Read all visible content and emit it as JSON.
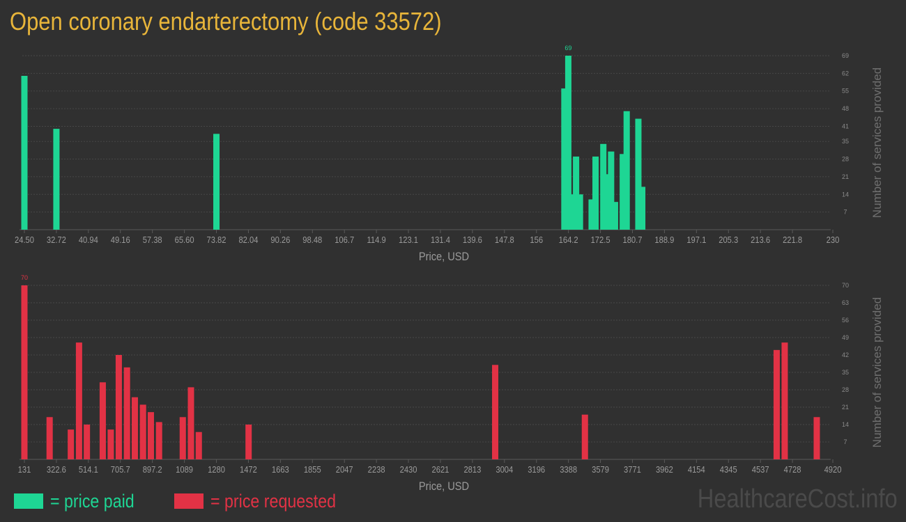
{
  "title": "Open coronary endarterectomy (code 33572)",
  "colors": {
    "paid": "#1ed694",
    "requested": "#e23245",
    "title": "#e8b53a",
    "background": "#303030"
  },
  "chart_data": [
    {
      "type": "bar",
      "name": "price paid",
      "xlabel": "Price, USD",
      "ylabel": "Number of services provided",
      "x_tick_labels": [
        "24.50",
        "32.72",
        "40.94",
        "49.16",
        "57.38",
        "65.60",
        "73.82",
        "82.04",
        "90.26",
        "98.48",
        "106.7",
        "114.9",
        "123.1",
        "131.4",
        "139.6",
        "147.8",
        "156",
        "164.2",
        "172.5",
        "180.7",
        "188.9",
        "197.1",
        "205.3",
        "213.6",
        "221.8",
        "230"
      ],
      "xlim": [
        24.5,
        230
      ],
      "y_ticks": [
        7,
        14,
        21,
        28,
        35,
        41,
        48,
        55,
        62,
        69
      ],
      "ylim": [
        0,
        69
      ],
      "grid": true,
      "y_axis_side": "right",
      "max_label": "69",
      "x": [
        24.5,
        32.72,
        73.82,
        163.2,
        164.2,
        165.2,
        166.2,
        167.2,
        170.2,
        171.2,
        173.2,
        174.2,
        175.2,
        176.2,
        178.2,
        179.2,
        182.2,
        183.2,
        189.2,
        200.2
      ],
      "values": [
        61,
        40,
        38,
        56,
        69,
        14,
        29,
        14,
        12,
        29,
        34,
        22,
        31,
        11,
        30,
        47,
        44,
        17,
        0,
        0
      ]
    },
    {
      "type": "bar",
      "name": "price requested",
      "xlabel": "Price, USD",
      "ylabel": "Number of services provided",
      "x_tick_labels": [
        "131",
        "322.6",
        "514.1",
        "705.7",
        "897.2",
        "1089",
        "1280",
        "1472",
        "1663",
        "1855",
        "2047",
        "2238",
        "2430",
        "2621",
        "2813",
        "3004",
        "3196",
        "3388",
        "3579",
        "3771",
        "3962",
        "4154",
        "4345",
        "4537",
        "4728",
        "4920"
      ],
      "xlim": [
        131,
        4920
      ],
      "y_ticks": [
        7,
        14,
        21,
        28,
        35,
        42,
        49,
        56,
        63,
        70
      ],
      "ylim": [
        0,
        70
      ],
      "grid": true,
      "y_axis_side": "right",
      "max_label": "70",
      "x": [
        131,
        282,
        409,
        458,
        505,
        600,
        648,
        696,
        745,
        792,
        841,
        888,
        937,
        1079,
        1128,
        1175,
        1473,
        2949,
        3486,
        4634,
        4682,
        4874
      ],
      "values": [
        70,
        17,
        12,
        47,
        14,
        31,
        12,
        42,
        37,
        25,
        22,
        19,
        15,
        17,
        29,
        11,
        14,
        38,
        18,
        44,
        47,
        17
      ]
    }
  ],
  "legend": {
    "paid_label": "= price paid",
    "requested_label": "= price requested"
  },
  "watermark": "HealthcareCost.info"
}
